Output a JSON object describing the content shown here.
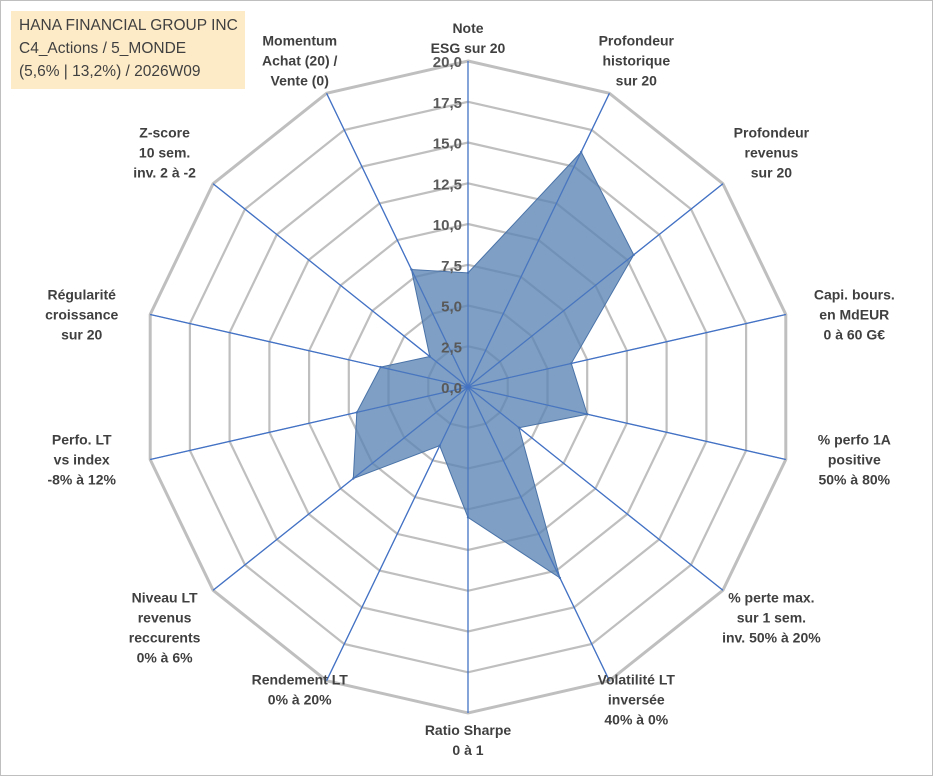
{
  "info": {
    "company": "HANA FINANCIAL GROUP INC",
    "category": "C4_Actions / 5_MONDE",
    "stats": "(5,6% | 13,2%) / 2026W09"
  },
  "chart_data": {
    "type": "radar",
    "title": "",
    "rmin": 0,
    "rmax": 20,
    "ticks": [
      "0,0",
      "2,5",
      "5,0",
      "7,5",
      "10,0",
      "12,5",
      "15,0",
      "17,5",
      "20,0"
    ],
    "tick_values": [
      0,
      2.5,
      5,
      7.5,
      10,
      12.5,
      15,
      17.5,
      20
    ],
    "axes": [
      {
        "label": [
          "Note",
          "ESG sur 20"
        ],
        "value": 7.0
      },
      {
        "label": [
          "Profondeur",
          "historique",
          "sur 20"
        ],
        "value": 16.0
      },
      {
        "label": [
          "Profondeur",
          "revenus",
          "sur 20"
        ],
        "value": 13.0
      },
      {
        "label": [
          "Capi. bours.",
          "en MdEUR",
          "0 à 60 G€"
        ],
        "value": 6.5
      },
      {
        "label": [
          "% perfo 1A",
          "positive",
          "50% à 80%"
        ],
        "value": 7.5
      },
      {
        "label": [
          "% perte max.",
          "sur 1 sem.",
          "inv. 50% à 20%"
        ],
        "value": 4.0
      },
      {
        "label": [
          "Volatilité LT",
          "inversée",
          "40% à 0%"
        ],
        "value": 13.0
      },
      {
        "label": [
          "Ratio Sharpe",
          "0 à 1"
        ],
        "value": 8.0
      },
      {
        "label": [
          "Rendement LT",
          "0% à 20%"
        ],
        "value": 4.0
      },
      {
        "label": [
          "Niveau LT",
          "revenus",
          "reccurents",
          "0% à 6%"
        ],
        "value": 9.0
      },
      {
        "label": [
          "Perfo. LT",
          "vs index",
          "-8% à 12%"
        ],
        "value": 7.0
      },
      {
        "label": [
          "Régularité",
          "croissance",
          "sur 20"
        ],
        "value": 5.5
      },
      {
        "label": [
          "Z-score",
          "10 sem.",
          "inv. 2 à -2"
        ],
        "value": 3.0
      },
      {
        "label": [
          "Momentum",
          "Achat (20) /",
          "Vente (0)"
        ],
        "value": 8.0
      }
    ],
    "series_color": "#5b84b4",
    "series_stroke": "#4a73a8",
    "spoke_color": "#4472c4",
    "grid_color": "#bfbfbf"
  }
}
